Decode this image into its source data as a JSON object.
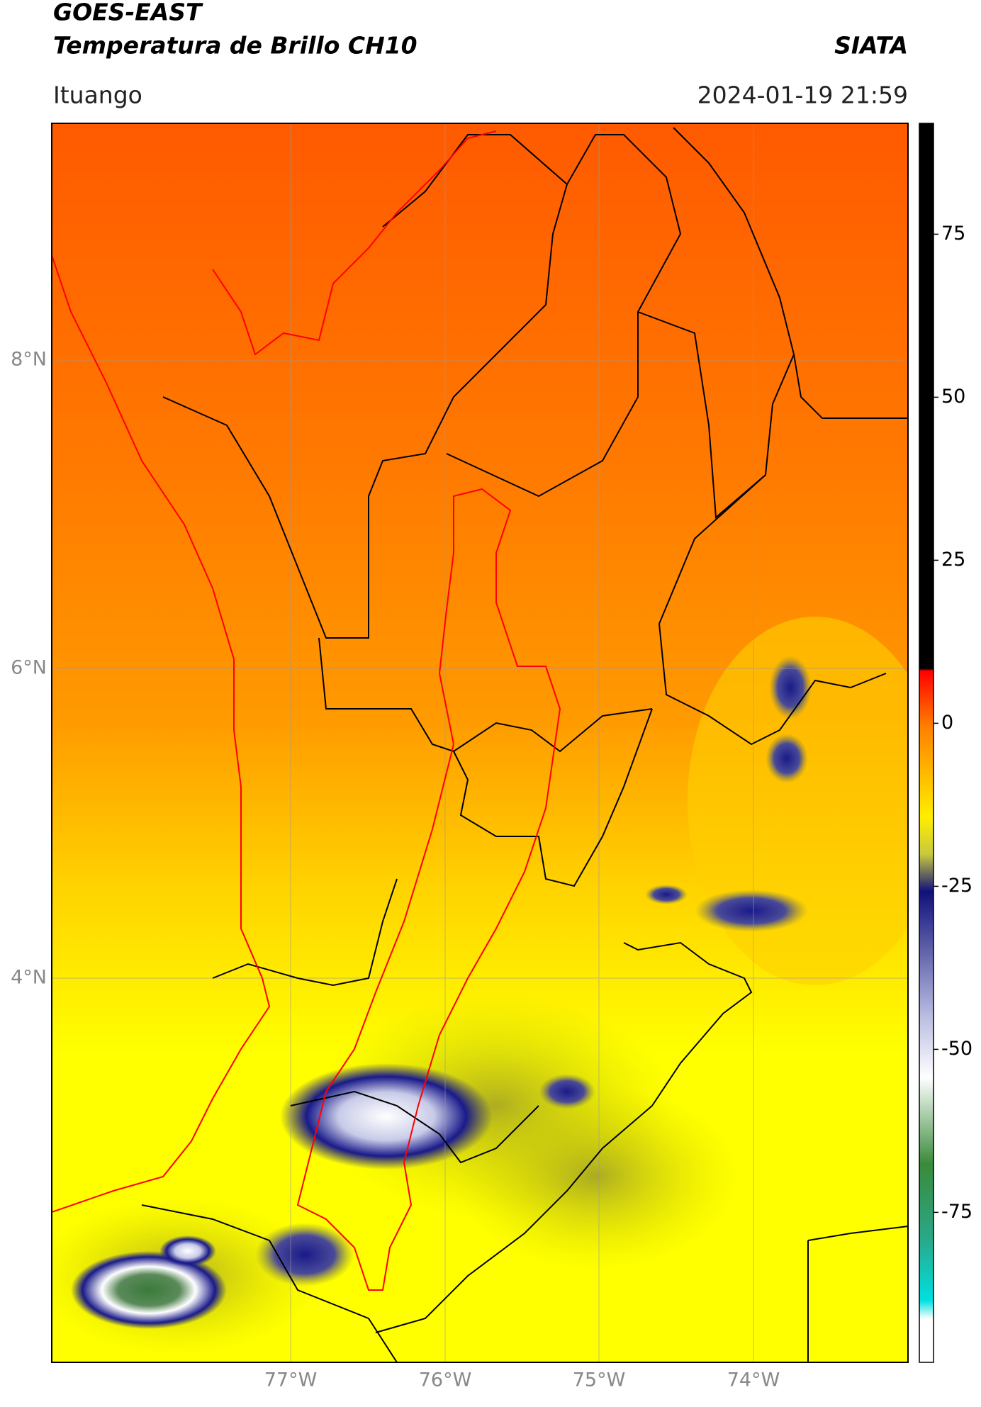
{
  "header": {
    "satellite": "GOES-EAST",
    "product": "Temperatura de Brillo CH10",
    "agency": "SIATA",
    "region": "Ituango",
    "timestamp": "2024-01-19 21:59"
  },
  "map": {
    "lat_labels": [
      "8°N",
      "6°N",
      "4°N"
    ],
    "lon_labels": [
      "77°W",
      "76°W",
      "75°W",
      "74°W"
    ]
  },
  "colorbar": {
    "lim": [
      -98,
      92
    ],
    "ticks": [
      75,
      50,
      25,
      0,
      -25,
      -50,
      -75
    ]
  }
}
